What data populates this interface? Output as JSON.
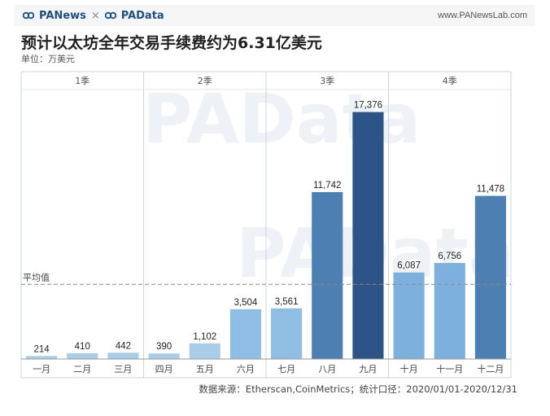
{
  "header": {
    "brand_left": "PANews",
    "separator": "×",
    "brand_right": "PAData",
    "site": "www.PANewsLab.com"
  },
  "title": "预计以太坊全年交易手续费约为6.31亿美元",
  "unit": "单位：万美元",
  "watermark": "PAData",
  "source": "数据来源：Etherscan,CoinMetrics；统计口径：2020/01/01-2020/12/31",
  "chart_data": {
    "type": "bar",
    "title": "预计以太坊全年交易手续费约为6.31亿美元",
    "ylabel": "万美元",
    "categories": [
      "一月",
      "二月",
      "三月",
      "四月",
      "五月",
      "六月",
      "七月",
      "八月",
      "九月",
      "十月",
      "十一月",
      "十二月"
    ],
    "values": [
      214,
      410,
      442,
      390,
      1102,
      3504,
      3561,
      11742,
      17376,
      6087,
      6756,
      11478
    ],
    "value_labels": [
      "214",
      "410",
      "442",
      "390",
      "1,102",
      "3,504",
      "3,561",
      "11,742",
      "17,376",
      "6,087",
      "6,756",
      "11,478"
    ],
    "colors": [
      "#a9cce8",
      "#a9cce8",
      "#a9cce8",
      "#a9cce8",
      "#a9cce8",
      "#8fbde3",
      "#8fbde3",
      "#4e7fb3",
      "#2c5486",
      "#7eb0dd",
      "#7eb0dd",
      "#4e7fb3"
    ],
    "groups": [
      {
        "label": "1季",
        "start": 0,
        "end": 2
      },
      {
        "label": "2季",
        "start": 3,
        "end": 5
      },
      {
        "label": "3季",
        "start": 6,
        "end": 8
      },
      {
        "label": "4季",
        "start": 9,
        "end": 11
      }
    ],
    "average": {
      "label": "平均值",
      "value": 5254
    },
    "ylim": [
      0,
      18500
    ],
    "grid": false
  }
}
